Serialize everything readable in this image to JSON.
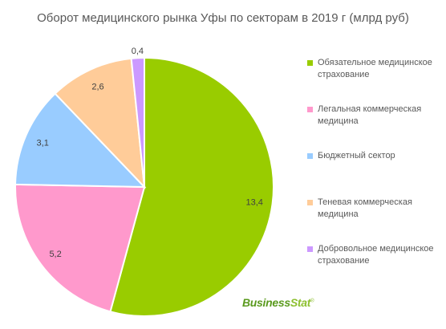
{
  "chart_data": {
    "type": "pie",
    "title": "Оборот медицинского рынка Уфы по секторам в 2019 г (млрд руб)",
    "categories": [
      "Обязательное медицинское страхование",
      "Легальная коммерческая медицина",
      "Бюджетный сектор",
      "Теневая коммерческая медицина",
      "Добровольное медицинское страхование"
    ],
    "values": [
      13.4,
      5.2,
      3.1,
      2.6,
      0.4
    ],
    "data_labels": [
      "13,4",
      "5,2",
      "3,1",
      "2,6",
      "0,4"
    ],
    "colors": [
      "#99cc00",
      "#ff99cc",
      "#99ccff",
      "#ffcc99",
      "#cc99ff"
    ],
    "start": "12 o'clock",
    "direction": "clockwise",
    "legend_position": "right"
  },
  "logo": {
    "part1": "Business",
    "part2": "Stat",
    "mark": "®"
  }
}
